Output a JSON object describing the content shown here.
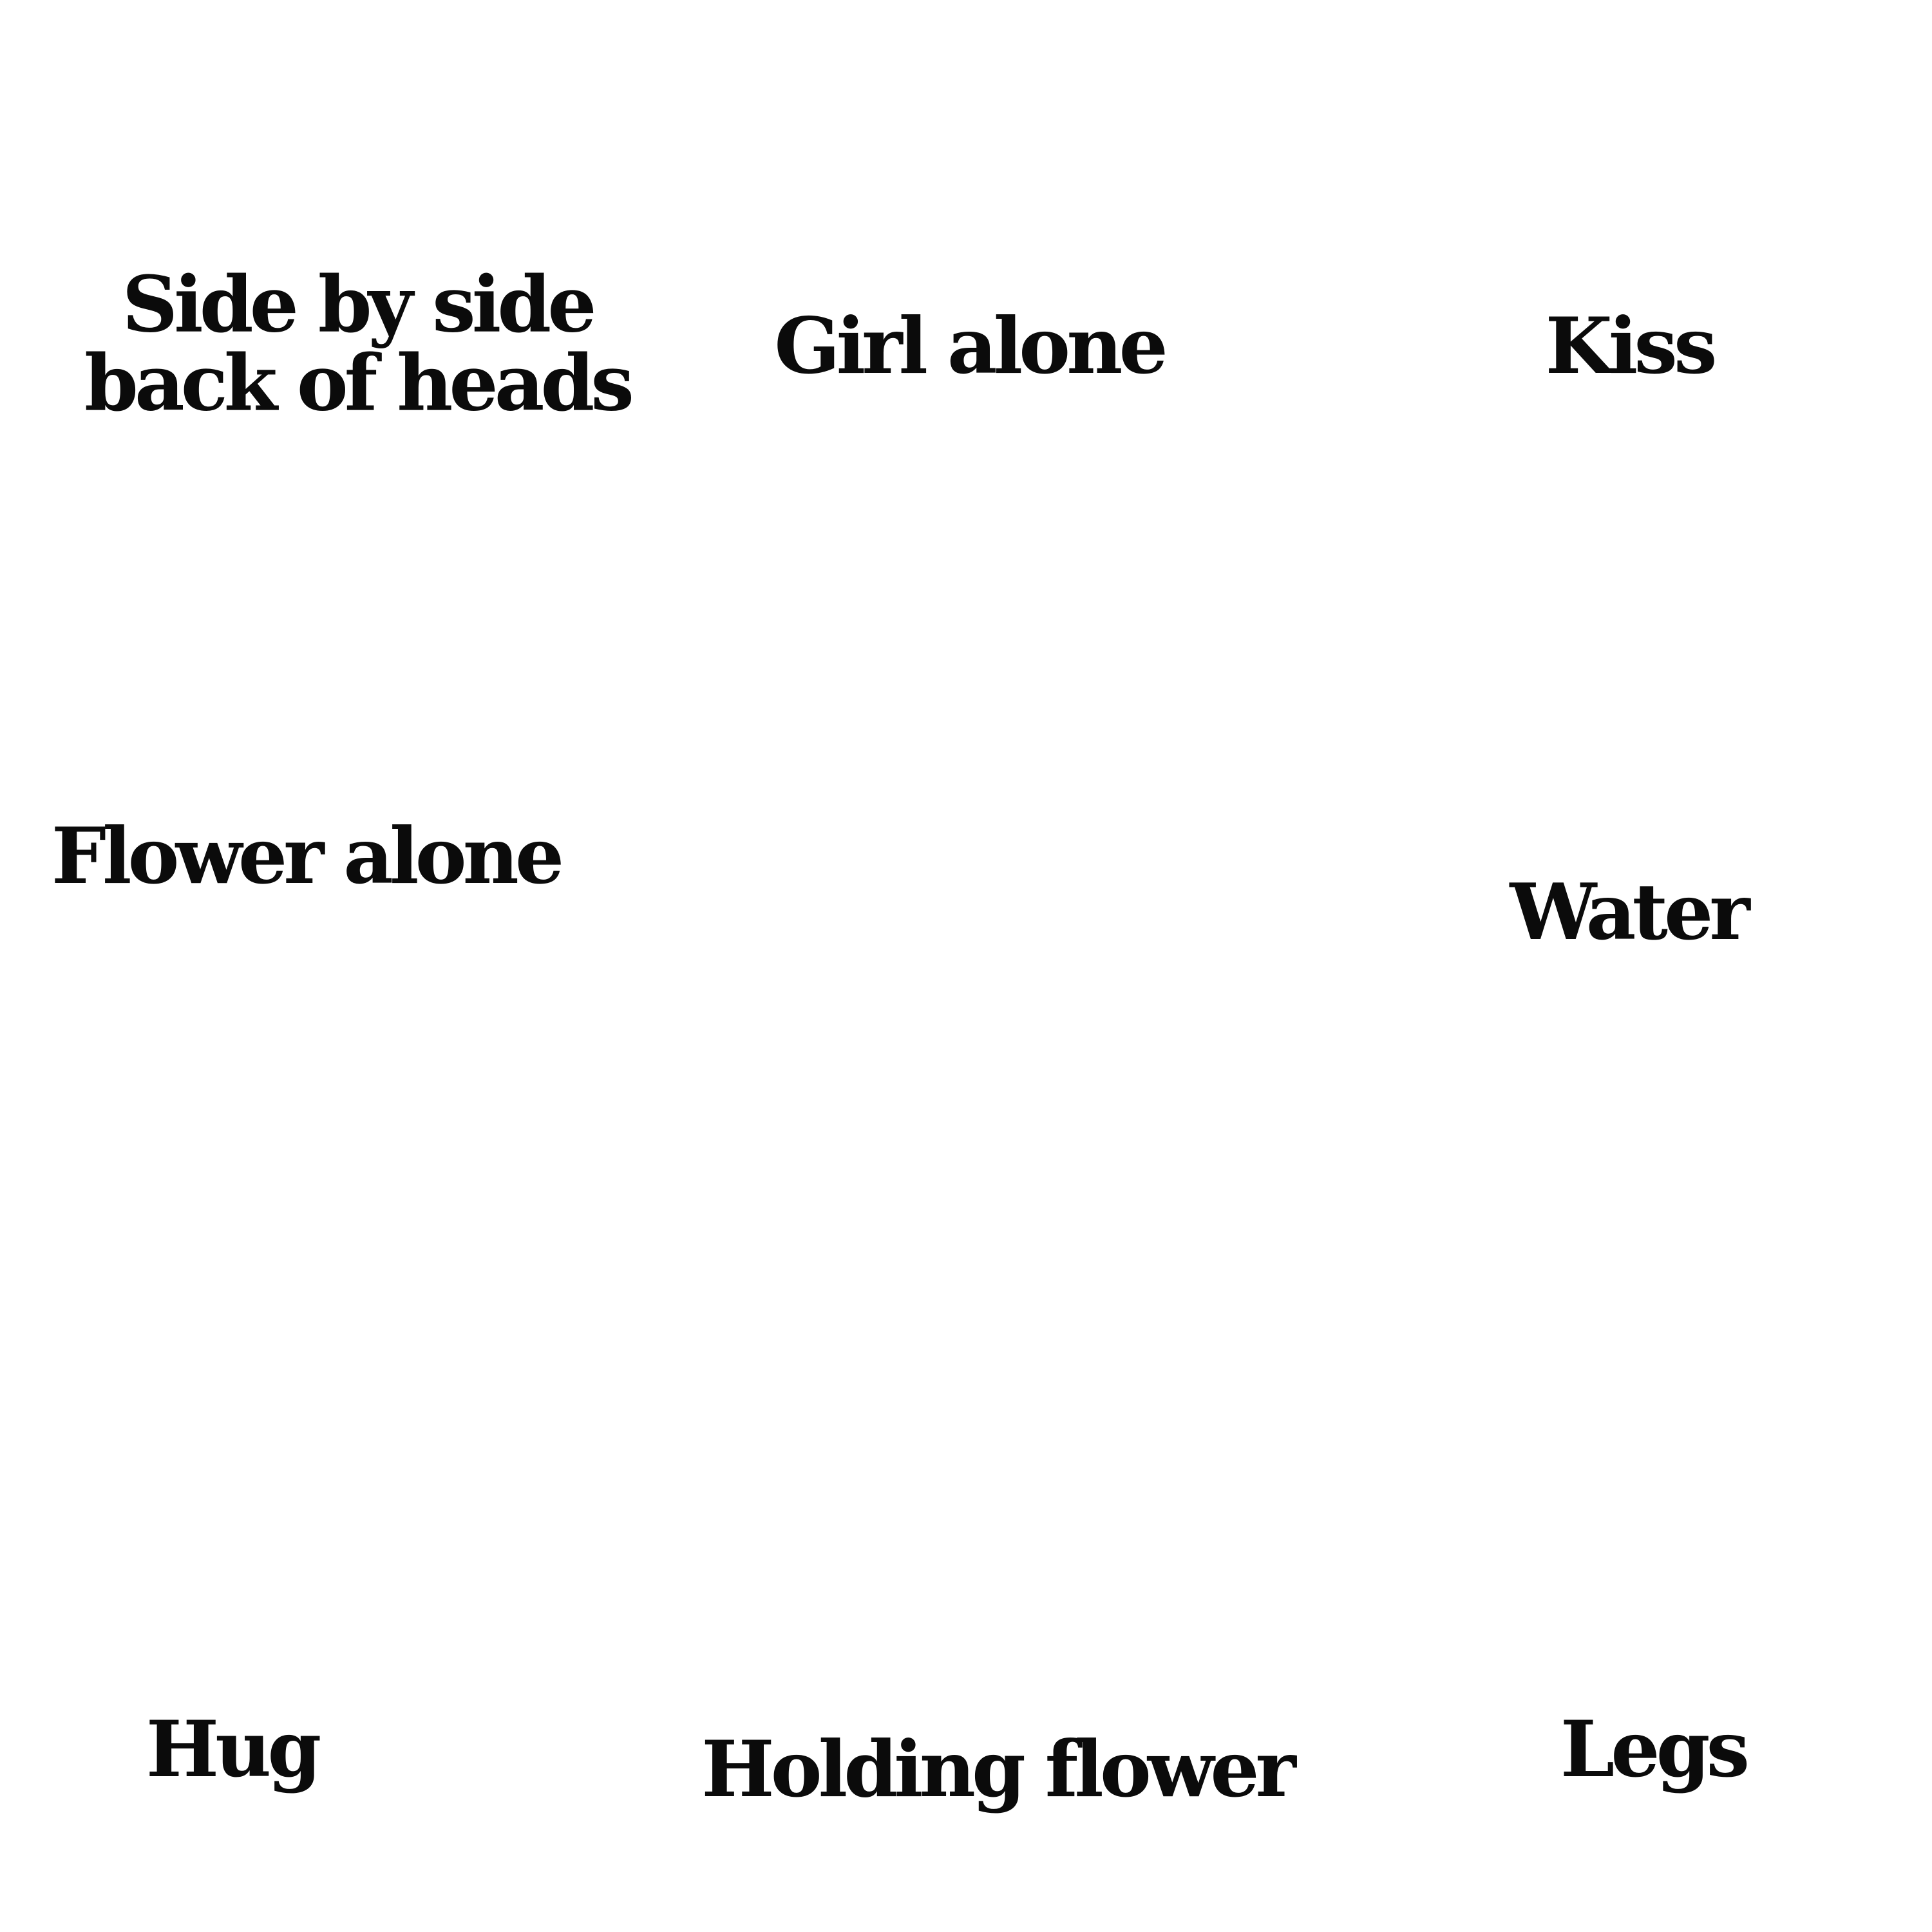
{
  "labels": {
    "side_by_side": {
      "line1": "Side by side",
      "line2": "back of heads"
    },
    "girl_alone": "Girl alone",
    "kiss": "Kiss",
    "flower_alone": "Flower alone",
    "water": "Water",
    "hug": "Hug",
    "holding_flower": "Holding flower",
    "legs": "Legs"
  },
  "colors": {
    "background": "#ffffff",
    "text": "#0b0b0b"
  }
}
